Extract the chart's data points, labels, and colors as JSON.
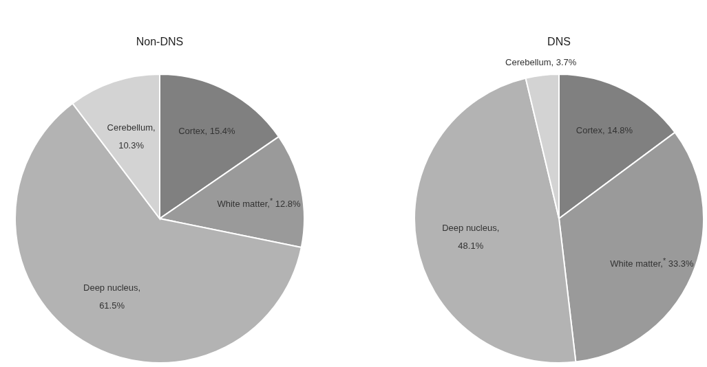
{
  "chart_data": [
    {
      "type": "pie",
      "title": "Non-DNS",
      "categories": [
        "Cortex",
        "White matter",
        "Deep nucleus",
        "Cerebellum"
      ],
      "values": [
        15.4,
        12.8,
        61.5,
        10.3
      ],
      "value_labels": [
        ", 15.4%",
        ",$^{*}$ 12.8%",
        ", 61.5%",
        ", 10.3%"
      ],
      "colors": [
        "#808080",
        "#9a9a9a",
        "#b3b3b3",
        "#d3d3d3"
      ],
      "data_labels": true
    },
    {
      "type": "pie",
      "title": "DNS",
      "categories": [
        "Cortex",
        "White matter",
        "Deep nucleus",
        "Cerebellum"
      ],
      "values": [
        14.8,
        33.3,
        48.1,
        3.7
      ],
      "value_labels": [
        ", 14.8%",
        ",$^{*}$ 33.3%",
        ", 48.1%",
        ", 3.7%"
      ],
      "colors": [
        "#808080",
        "#9a9a9a",
        "#b3b3b3",
        "#d3d3d3"
      ],
      "data_labels": true
    }
  ]
}
